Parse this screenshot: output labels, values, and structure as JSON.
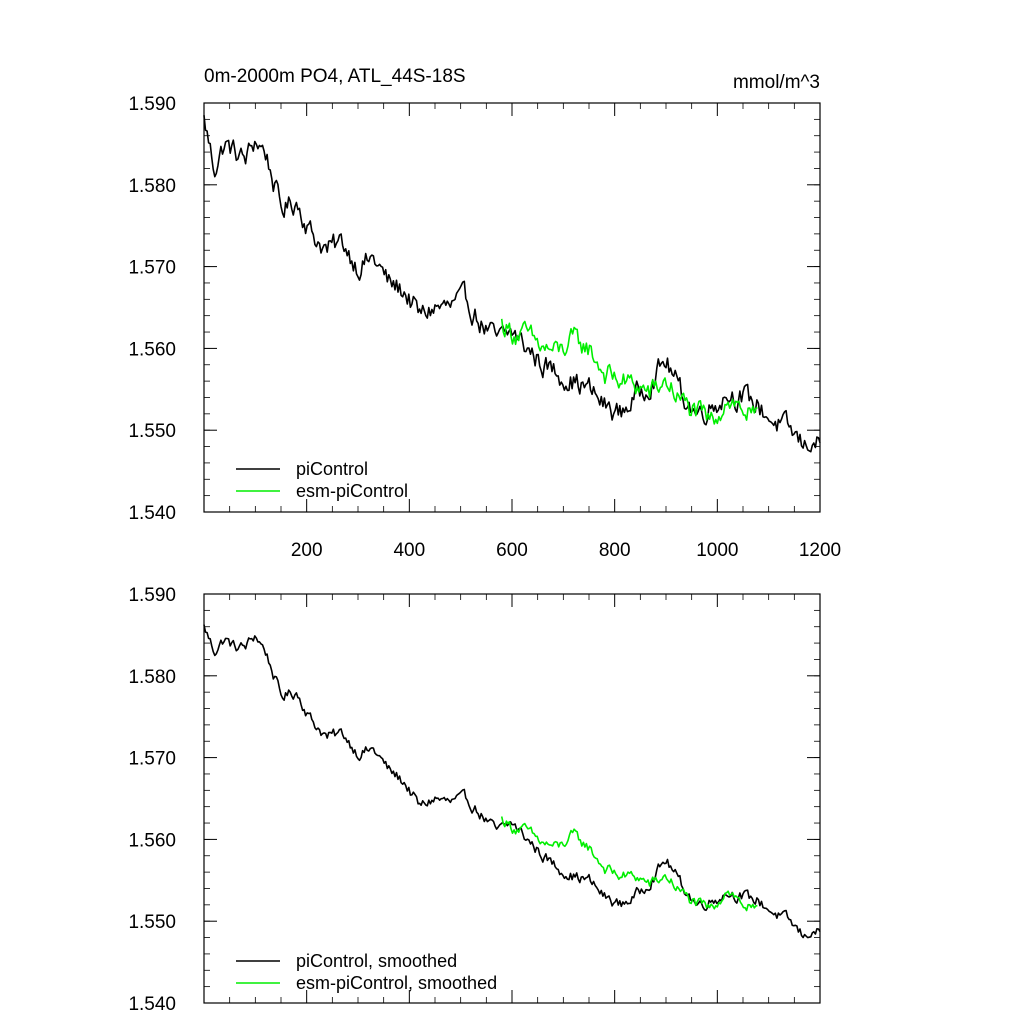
{
  "chart_data": [
    {
      "type": "line",
      "title": "0m-2000m PO4, ATL_44S-18S",
      "units": "mmol/m^3",
      "xlabel": "",
      "ylabel": "",
      "xlim": [
        0,
        1200
      ],
      "ylim": [
        1.54,
        1.59
      ],
      "xticks": [
        200,
        400,
        600,
        800,
        1000,
        1200
      ],
      "xtick_labels": [
        "200",
        "400",
        "600",
        "800",
        "1000",
        "1200"
      ],
      "yticks": [
        1.54,
        1.55,
        1.56,
        1.57,
        1.58,
        1.59
      ],
      "ytick_labels": [
        "1.540",
        "1.550",
        "1.560",
        "1.570",
        "1.580",
        "1.590"
      ],
      "legend_position": "bottom-left",
      "series": [
        {
          "name": "piControl",
          "color": "#000000",
          "noise": 0.0012,
          "x": [
            0,
            20,
            40,
            60,
            80,
            100,
            120,
            150,
            180,
            210,
            240,
            270,
            300,
            330,
            360,
            390,
            420,
            450,
            480,
            510,
            540,
            570,
            600,
            630,
            660,
            690,
            720,
            750,
            780,
            810,
            840,
            870,
            900,
            930,
            960,
            990,
            1020,
            1050,
            1080,
            1110,
            1140,
            1170,
            1185,
            1200
          ],
          "values": [
            1.588,
            1.582,
            1.585,
            1.584,
            1.583,
            1.5855,
            1.584,
            1.577,
            1.578,
            1.574,
            1.572,
            1.573,
            1.57,
            1.571,
            1.568,
            1.567,
            1.564,
            1.565,
            1.565,
            1.566,
            1.563,
            1.561,
            1.562,
            1.56,
            1.558,
            1.557,
            1.556,
            1.555,
            1.553,
            1.552,
            1.554,
            1.556,
            1.5585,
            1.5545,
            1.552,
            1.553,
            1.5545,
            1.554,
            1.553,
            1.551,
            1.55,
            1.548,
            1.549,
            1.548
          ]
        },
        {
          "name": "esm-piControl",
          "color": "#00ee00",
          "noise": 0.0012,
          "x": [
            580,
            600,
            630,
            660,
            690,
            720,
            750,
            780,
            810,
            840,
            870,
            900,
            930,
            960,
            990,
            1020,
            1050,
            1080
          ],
          "values": [
            1.563,
            1.562,
            1.5615,
            1.56,
            1.5595,
            1.561,
            1.56,
            1.557,
            1.556,
            1.5555,
            1.5545,
            1.556,
            1.5535,
            1.552,
            1.551,
            1.554,
            1.5525,
            1.551
          ]
        }
      ]
    },
    {
      "type": "line",
      "title": "",
      "xlabel": "",
      "ylabel": "",
      "xlim": [
        0,
        1200
      ],
      "ylim": [
        1.54,
        1.59
      ],
      "xticks": [
        200,
        400,
        600,
        800,
        1000,
        1200
      ],
      "xtick_labels": [],
      "yticks": [
        1.54,
        1.55,
        1.56,
        1.57,
        1.58,
        1.59
      ],
      "ytick_labels": [
        "1.540",
        "1.550",
        "1.560",
        "1.570",
        "1.580",
        "1.590"
      ],
      "legend_position": "bottom-left",
      "series": [
        {
          "name": "piControl, smoothed",
          "color": "#000000",
          "noise": 0.0006,
          "x": [
            0,
            20,
            40,
            60,
            80,
            100,
            120,
            150,
            180,
            210,
            240,
            270,
            300,
            330,
            360,
            390,
            420,
            450,
            480,
            510,
            540,
            570,
            600,
            630,
            660,
            690,
            720,
            750,
            780,
            810,
            840,
            870,
            900,
            930,
            960,
            990,
            1020,
            1050,
            1080,
            1110,
            1140,
            1170,
            1185,
            1200
          ],
          "values": [
            1.586,
            1.583,
            1.5845,
            1.5835,
            1.5835,
            1.585,
            1.583,
            1.5775,
            1.578,
            1.5745,
            1.5725,
            1.573,
            1.5705,
            1.571,
            1.5685,
            1.567,
            1.564,
            1.565,
            1.5645,
            1.565,
            1.563,
            1.561,
            1.562,
            1.56,
            1.558,
            1.5565,
            1.5555,
            1.555,
            1.553,
            1.552,
            1.553,
            1.555,
            1.5575,
            1.5545,
            1.552,
            1.5525,
            1.5535,
            1.553,
            1.5525,
            1.551,
            1.55,
            1.548,
            1.549,
            1.5485
          ]
        },
        {
          "name": "esm-piControl, smoothed",
          "color": "#00ee00",
          "noise": 0.0006,
          "x": [
            580,
            600,
            630,
            660,
            690,
            720,
            750,
            780,
            810,
            840,
            870,
            900,
            930,
            960,
            990,
            1020,
            1050,
            1080
          ],
          "values": [
            1.5625,
            1.5615,
            1.561,
            1.5595,
            1.559,
            1.5605,
            1.559,
            1.5565,
            1.5555,
            1.5555,
            1.5545,
            1.5555,
            1.5535,
            1.552,
            1.5515,
            1.554,
            1.552,
            1.551
          ]
        }
      ]
    }
  ]
}
